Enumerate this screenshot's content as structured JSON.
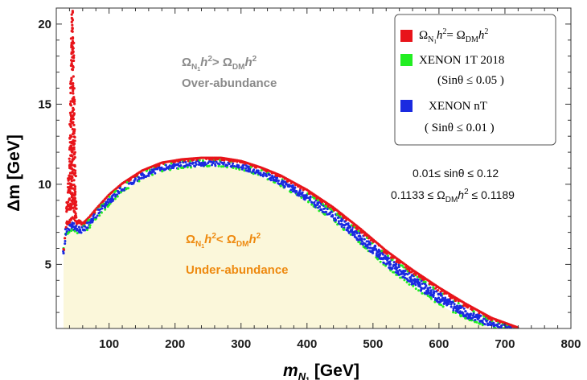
{
  "chart_data": {
    "type": "scatter",
    "xlim": [
      20,
      800
    ],
    "ylim": [
      1,
      21
    ],
    "x_ticks": [
      100,
      200,
      300,
      400,
      500,
      600,
      700,
      800
    ],
    "y_ticks": [
      5,
      10,
      15,
      20
    ],
    "xlabel": {
      "base": "m",
      "sub": "N",
      "subsub": "1",
      "unit": " [GeV]"
    },
    "ylabel": "Δm [GeV]",
    "colors": {
      "relic": "#e8141a",
      "xenon1t": "#22ee22",
      "xenonnt": "#1a2ae0",
      "underfill": "#fbf7da",
      "frame": "#333333"
    },
    "legend_position": "top-right",
    "legend": [
      {
        "color": "#e8141a",
        "text": {
          "omega_n": "Ω",
          "sub_n": "N",
          "subsub": "1",
          "h2": "h",
          "sup2": "2",
          "eq": "= Ω",
          "sub_dm": "DM",
          "h2b": "h",
          "sup2b": "2"
        }
      },
      {
        "color": "#22ee22",
        "text": {
          "line1": "XENON 1T 2018",
          "line2": "(Sinθ ≤ 0.05 )"
        }
      },
      {
        "color": "#1a2ae0",
        "text": {
          "line1": "XENON nT",
          "line2": "( Sinθ ≤ 0.01 )"
        }
      }
    ],
    "annotations": {
      "over": {
        "relation": "> Ω",
        "label": "Over-abundance"
      },
      "under": {
        "relation": "< Ω",
        "label": "Under-abundance"
      },
      "range1": "0.01≤ sinθ ≤ 0.12",
      "range2_pre": "0.1133 ≤ Ω",
      "range2_sub": "DM",
      "range2_h": "h",
      "range2_sup": "2",
      "range2_post": " ≤ 0.1189"
    },
    "series": [
      {
        "key": "band",
        "x": [
          31,
          35,
          40,
          45,
          50,
          55,
          60,
          70,
          80,
          100,
          120,
          150,
          180,
          210,
          240,
          270,
          300,
          330,
          360,
          400,
          440,
          480,
          520,
          560,
          600,
          640,
          680,
          720
        ],
        "y_upper": [
          5.9,
          7.3,
          7.7,
          7.9,
          7.6,
          7.7,
          7.5,
          7.9,
          8.4,
          9.3,
          10.0,
          10.8,
          11.3,
          11.5,
          11.6,
          11.6,
          11.4,
          11.0,
          10.5,
          9.6,
          8.5,
          7.2,
          5.8,
          4.6,
          3.5,
          2.5,
          1.6,
          1.0
        ],
        "y_lower": [
          5.6,
          6.8,
          7.0,
          7.1,
          7.0,
          6.9,
          6.9,
          7.3,
          7.8,
          8.7,
          9.5,
          10.3,
          10.8,
          11.0,
          11.1,
          11.1,
          10.9,
          10.5,
          9.9,
          8.9,
          7.7,
          6.3,
          4.8,
          3.6,
          2.5,
          1.6,
          1.0,
          1.0
        ]
      },
      {
        "key": "spike",
        "x": [
          36,
          38,
          40,
          41,
          42,
          43,
          44,
          45,
          46,
          47,
          48,
          49,
          50
        ],
        "y_min": [
          7.4,
          7.6,
          7.8,
          8.0,
          8.2,
          8.4,
          8.6,
          8.6,
          8.4,
          8.2,
          7.9,
          7.7,
          7.5
        ],
        "y_max": [
          9.0,
          10.5,
          12.5,
          14.5,
          17.0,
          19.5,
          21.0,
          21.0,
          19.0,
          16.0,
          13.5,
          11.0,
          9.0
        ]
      }
    ]
  }
}
